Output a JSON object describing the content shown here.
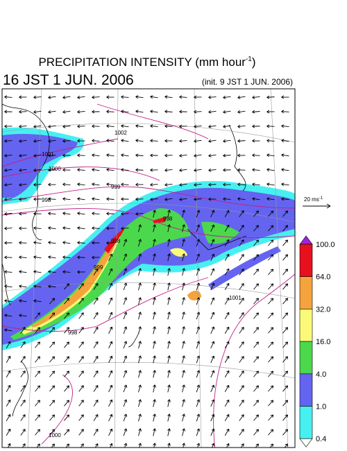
{
  "header": {
    "title": "PRECIPITATION INTENSITY (mm hour",
    "title_sup": "-1",
    "title_close": ")",
    "time": "16 JST 1 JUN. 2006",
    "init": "(init. 9 JST 1 JUN. 2006)"
  },
  "scale": {
    "label": "20 ms",
    "label_sup": "-1"
  },
  "colorbar": {
    "labels": [
      "100.0",
      "64.0",
      "32.0",
      "16.0",
      "4.0",
      "1.0",
      "0.4"
    ],
    "colors": [
      "#e8101c",
      "#f5a33c",
      "#fafa78",
      "#4cd84c",
      "#6464f0",
      "#46f0f0"
    ]
  },
  "isobars": {
    "labels": [
      "1002",
      "1001",
      "1000",
      "999",
      "998",
      "998",
      "999",
      "998",
      "998",
      "1000",
      "1001"
    ]
  }
}
